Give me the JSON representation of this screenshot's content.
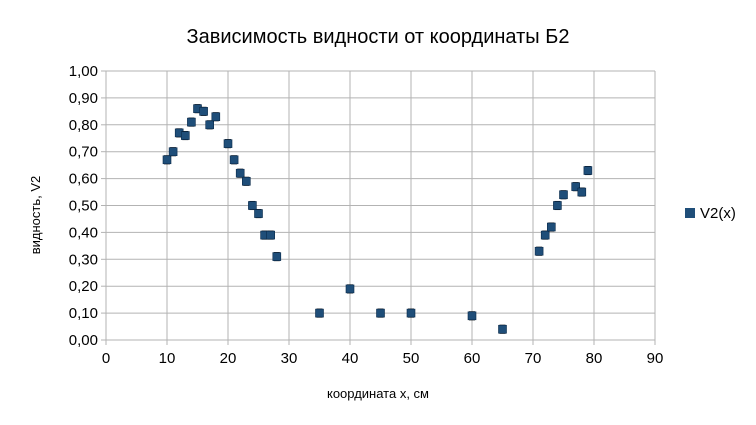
{
  "chart_data": {
    "type": "scatter",
    "title": "Зависимость видности от координаты Б2",
    "xlabel": "координата x, см",
    "ylabel": "видность, V2",
    "xlim": [
      0,
      90
    ],
    "ylim": [
      0,
      1
    ],
    "x_ticks": [
      0,
      10,
      20,
      30,
      40,
      50,
      60,
      70,
      80,
      90
    ],
    "x_tick_labels": [
      "0",
      "10",
      "20",
      "30",
      "40",
      "50",
      "60",
      "70",
      "80",
      "90"
    ],
    "y_ticks": [
      0,
      0.1,
      0.2,
      0.3,
      0.4,
      0.5,
      0.6,
      0.7,
      0.8,
      0.9,
      1.0
    ],
    "y_tick_labels": [
      "0,00",
      "0,10",
      "0,20",
      "0,30",
      "0,40",
      "0,50",
      "0,60",
      "0,70",
      "0,80",
      "0,90",
      "1,00"
    ],
    "grid": true,
    "legend_position": "right",
    "marker_color": "#1f4e79",
    "error_bar": 0.015,
    "series": [
      {
        "name": "V2(x)",
        "x": [
          10,
          11,
          12,
          13,
          14,
          15,
          16,
          17,
          18,
          20,
          21,
          22,
          23,
          24,
          25,
          26,
          27,
          28,
          35,
          40,
          45,
          50,
          60,
          65,
          71,
          72,
          73,
          74,
          75,
          77,
          78,
          79
        ],
        "y": [
          0.67,
          0.7,
          0.77,
          0.76,
          0.81,
          0.86,
          0.85,
          0.8,
          0.83,
          0.73,
          0.67,
          0.62,
          0.59,
          0.5,
          0.47,
          0.39,
          0.39,
          0.31,
          0.1,
          0.19,
          0.1,
          0.1,
          0.09,
          0.04,
          0.33,
          0.39,
          0.42,
          0.5,
          0.54,
          0.57,
          0.55,
          0.63
        ]
      }
    ]
  }
}
